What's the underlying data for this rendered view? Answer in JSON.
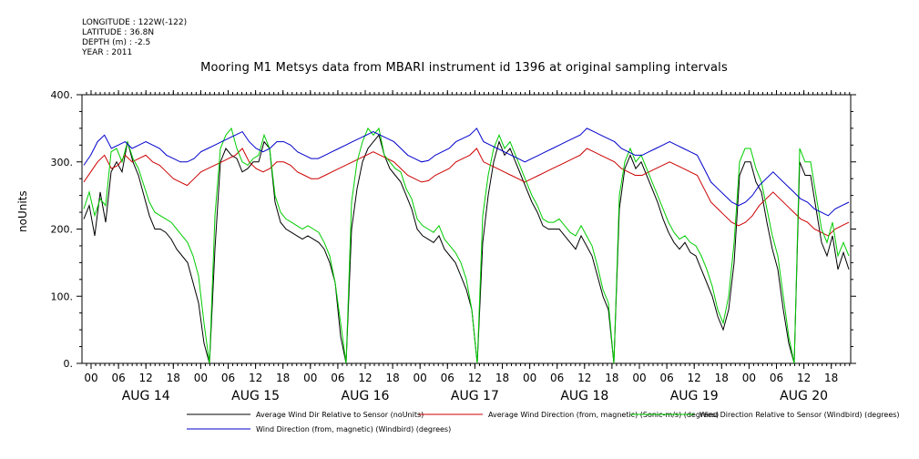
{
  "header": {
    "longitude": "LONGITUDE : 122W(-122)",
    "latitude": "LATITUDE : 36.8N",
    "depth": "DEPTH (m) : -2.5",
    "year": "YEAR : 2011"
  },
  "chart_data": {
    "type": "line",
    "title": "Mooring M1 Metsys data from MBARI instrument id 1396 at original sampling intervals",
    "ylabel": "noUnits",
    "xlabel": "",
    "ylim": [
      0,
      400
    ],
    "yticks": [
      "0.",
      "100.",
      "200.",
      "300.",
      "400."
    ],
    "x_hour_ticks": [
      "00",
      "06",
      "12",
      "18",
      "00",
      "06",
      "12",
      "18",
      "00",
      "06",
      "12",
      "18",
      "00",
      "06",
      "12",
      "18",
      "00",
      "06",
      "12",
      "18",
      "00",
      "06",
      "12",
      "18",
      "00",
      "06",
      "12",
      "18"
    ],
    "x_day_labels": [
      "AUG 14",
      "AUG 15",
      "AUG 16",
      "AUG 17",
      "AUG 18",
      "AUG 19",
      "AUG 20"
    ],
    "grid": false,
    "legend_position": "bottom",
    "series": [
      {
        "name": "Average Wind Dir Relative to Sensor (noUnits)",
        "color": "#000000",
        "values": [
          215,
          235,
          190,
          255,
          210,
          285,
          300,
          285,
          330,
          300,
          280,
          250,
          220,
          200,
          200,
          195,
          185,
          170,
          160,
          150,
          120,
          90,
          30,
          0,
          170,
          300,
          320,
          310,
          305,
          285,
          290,
          300,
          300,
          330,
          320,
          240,
          210,
          200,
          195,
          190,
          185,
          190,
          185,
          180,
          170,
          150,
          120,
          40,
          0,
          200,
          260,
          300,
          320,
          330,
          340,
          310,
          290,
          280,
          270,
          250,
          230,
          200,
          190,
          185,
          180,
          190,
          170,
          160,
          150,
          130,
          110,
          80,
          0,
          180,
          250,
          300,
          330,
          310,
          320,
          300,
          280,
          260,
          240,
          225,
          205,
          200,
          200,
          200,
          190,
          180,
          170,
          190,
          175,
          160,
          130,
          100,
          80,
          0,
          230,
          290,
          310,
          290,
          300,
          280,
          260,
          240,
          215,
          195,
          180,
          170,
          180,
          165,
          160,
          140,
          120,
          100,
          70,
          50,
          80,
          150,
          280,
          300,
          300,
          270,
          255,
          210,
          170,
          140,
          80,
          30,
          0,
          300,
          280,
          280,
          230,
          180,
          160,
          190,
          140,
          165,
          140
        ]
      },
      {
        "name": "Average Wind Direction (from, magnetic) (Sonic-m/s) (degrees)",
        "color": "#cc0000",
        "values": [
          270,
          285,
          300,
          310,
          290,
          295,
          310,
          300,
          305,
          310,
          300,
          295,
          285,
          275,
          270,
          265,
          275,
          285,
          290,
          295,
          300,
          305,
          310,
          320,
          300,
          290,
          285,
          290,
          300,
          300,
          295,
          285,
          280,
          275,
          275,
          280,
          285,
          290,
          295,
          300,
          305,
          310,
          315,
          310,
          305,
          300,
          290,
          280,
          275,
          270,
          272,
          280,
          285,
          290,
          300,
          305,
          310,
          320,
          300,
          295,
          290,
          285,
          280,
          275,
          270,
          275,
          280,
          285,
          290,
          295,
          300,
          305,
          310,
          320,
          315,
          310,
          305,
          300,
          290,
          285,
          280,
          280,
          285,
          290,
          295,
          300,
          295,
          290,
          285,
          280,
          260,
          240,
          230,
          220,
          210,
          205,
          210,
          220,
          235,
          245,
          255,
          245,
          235,
          225,
          215,
          210,
          200,
          195,
          190,
          200,
          205,
          210
        ]
      },
      {
        "name": "Wind Direction Relative to Sensor (Windbird) (degrees)",
        "color": "#00cc00",
        "values": [
          230,
          255,
          220,
          245,
          235,
          315,
          320,
          300,
          330,
          305,
          290,
          265,
          240,
          225,
          220,
          215,
          210,
          200,
          190,
          180,
          160,
          130,
          60,
          0,
          220,
          320,
          340,
          350,
          320,
          300,
          295,
          305,
          310,
          340,
          320,
          250,
          225,
          215,
          210,
          205,
          200,
          205,
          200,
          195,
          180,
          160,
          120,
          60,
          0,
          240,
          300,
          330,
          350,
          340,
          350,
          310,
          300,
          290,
          285,
          260,
          245,
          215,
          205,
          200,
          195,
          205,
          185,
          175,
          165,
          150,
          125,
          80,
          0,
          220,
          280,
          320,
          340,
          320,
          330,
          310,
          290,
          270,
          250,
          235,
          215,
          210,
          210,
          215,
          205,
          195,
          190,
          205,
          190,
          175,
          145,
          110,
          90,
          0,
          250,
          300,
          320,
          300,
          310,
          290,
          270,
          250,
          230,
          210,
          195,
          185,
          190,
          180,
          175,
          160,
          140,
          115,
          80,
          60,
          100,
          180,
          300,
          320,
          320,
          290,
          270,
          230,
          190,
          160,
          100,
          40,
          0,
          320,
          300,
          300,
          250,
          200,
          180,
          210,
          160,
          180,
          160
        ]
      },
      {
        "name": "Wind Direction (from, magnetic) (Windbird) (degrees)",
        "color": "#0000cc",
        "values": [
          295,
          310,
          330,
          340,
          320,
          325,
          330,
          320,
          325,
          330,
          325,
          320,
          310,
          305,
          300,
          300,
          305,
          315,
          320,
          325,
          330,
          335,
          340,
          345,
          330,
          320,
          315,
          320,
          330,
          330,
          325,
          315,
          310,
          305,
          305,
          310,
          315,
          320,
          325,
          330,
          335,
          340,
          345,
          340,
          335,
          330,
          320,
          310,
          305,
          300,
          302,
          310,
          315,
          320,
          330,
          335,
          340,
          350,
          330,
          325,
          320,
          315,
          310,
          305,
          300,
          305,
          310,
          315,
          320,
          325,
          330,
          335,
          340,
          350,
          345,
          340,
          335,
          330,
          320,
          315,
          310,
          310,
          315,
          320,
          325,
          330,
          325,
          320,
          315,
          310,
          290,
          270,
          260,
          250,
          240,
          235,
          240,
          250,
          265,
          275,
          285,
          275,
          265,
          255,
          245,
          240,
          230,
          225,
          220,
          230,
          235,
          240
        ]
      }
    ]
  }
}
